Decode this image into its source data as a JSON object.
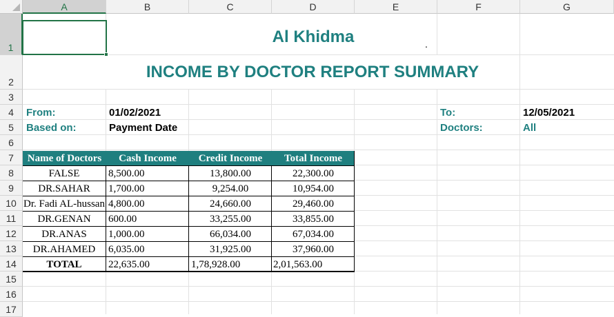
{
  "columns": [
    "A",
    "B",
    "C",
    "D",
    "E",
    "F",
    "G"
  ],
  "rows": [
    "1",
    "2",
    "3",
    "4",
    "5",
    "6",
    "7",
    "8",
    "9",
    "10",
    "11",
    "12",
    "13",
    "14",
    "15",
    "16",
    "17"
  ],
  "header": {
    "company": "Al Khidma",
    "dot": ".",
    "report_title": "INCOME BY DOCTOR REPORT SUMMARY"
  },
  "info": {
    "from_label": "From:",
    "from_value": "01/02/2021",
    "based_label": "Based on:",
    "based_value": "Payment Date",
    "to_label": "To:",
    "to_value": "12/05/2021",
    "doctors_label": "Doctors:",
    "doctors_value": "All"
  },
  "table": {
    "headers": [
      "Name of Doctors",
      "Cash Income",
      "Credit Income",
      "Total Income"
    ],
    "rows": [
      [
        "FALSE",
        "8,500.00",
        "13,800.00",
        "22,300.00"
      ],
      [
        "DR.SAHAR",
        "1,700.00",
        "9,254.00",
        "10,954.00"
      ],
      [
        "Dr. Fadi AL-hussan",
        "4,800.00",
        "24,660.00",
        "29,460.00"
      ],
      [
        "DR.GENAN",
        "600.00",
        "33,255.00",
        "33,855.00"
      ],
      [
        "DR.ANAS",
        "1,000.00",
        "66,034.00",
        "67,034.00"
      ],
      [
        "DR.AHAMED",
        "6,035.00",
        "31,925.00",
        "37,960.00"
      ]
    ],
    "total": [
      "TOTAL",
      "22,635.00",
      "1,78,928.00",
      "2,01,563.00"
    ]
  },
  "colors": {
    "accent": "#1f8080",
    "table_header_bg": "#1f7f7f",
    "selection": "#217346"
  }
}
